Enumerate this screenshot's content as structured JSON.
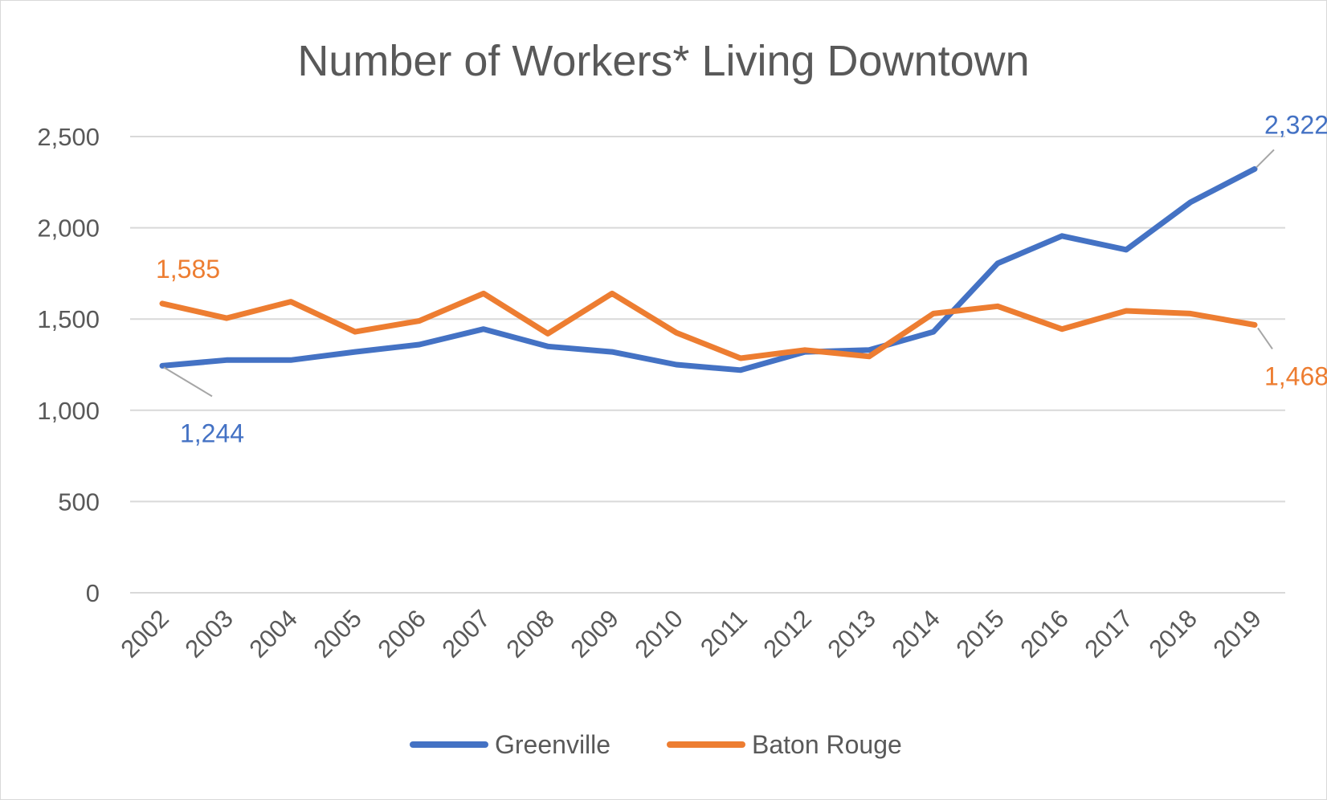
{
  "chart_data": {
    "type": "line",
    "title": "Number of Workers* Living Downtown",
    "xlabel": "",
    "ylabel": "",
    "ylim": [
      0,
      2500
    ],
    "yticks": [
      0,
      500,
      1000,
      1500,
      2000,
      2500
    ],
    "ytick_labels": [
      "0",
      "500",
      "1,000",
      "1,500",
      "2,000",
      "2,500"
    ],
    "grid": true,
    "legend_position": "bottom",
    "categories": [
      "2002",
      "2003",
      "2004",
      "2005",
      "2006",
      "2007",
      "2008",
      "2009",
      "2010",
      "2011",
      "2012",
      "2013",
      "2014",
      "2015",
      "2016",
      "2017",
      "2018",
      "2019"
    ],
    "series": [
      {
        "name": "Greenville",
        "color": "#4472c4",
        "values": [
          1244,
          1275,
          1275,
          1320,
          1360,
          1445,
          1350,
          1320,
          1250,
          1220,
          1320,
          1330,
          1430,
          1805,
          1955,
          1880,
          2140,
          2322
        ],
        "labels": [
          {
            "index": 0,
            "text": "1,244"
          },
          {
            "index": 17,
            "text": "2,322"
          }
        ]
      },
      {
        "name": "Baton Rouge",
        "color": "#ed7d31",
        "values": [
          1585,
          1505,
          1595,
          1430,
          1490,
          1640,
          1420,
          1640,
          1425,
          1285,
          1330,
          1295,
          1530,
          1570,
          1445,
          1545,
          1530,
          1468
        ],
        "labels": [
          {
            "index": 0,
            "text": "1,585"
          },
          {
            "index": 17,
            "text": "1,468"
          }
        ]
      }
    ]
  }
}
